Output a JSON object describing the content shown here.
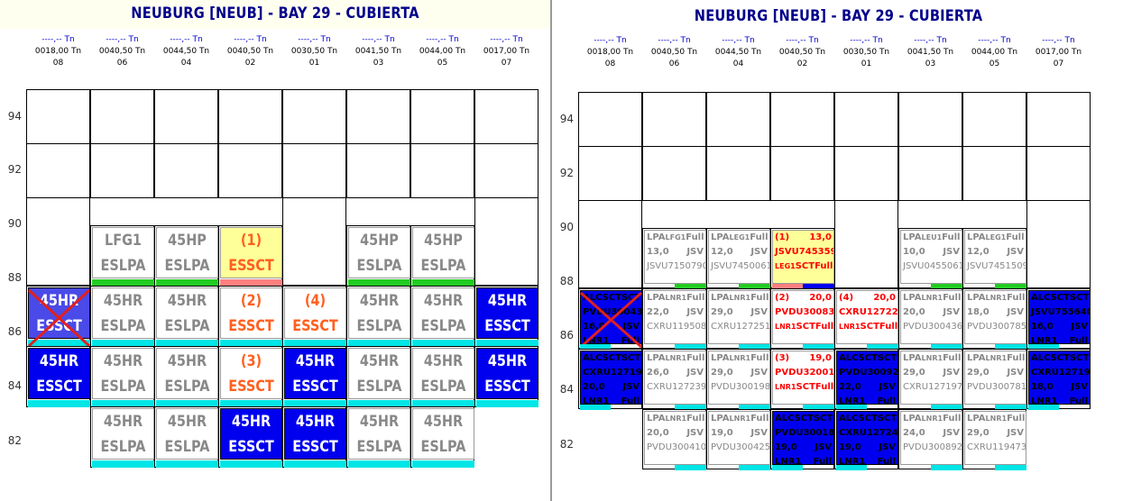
{
  "title": "NEUBURG [NEUB]  - BAY 29 - CUBIERTA",
  "rows": [
    "94",
    "92",
    "90",
    "88",
    "86",
    "84",
    "82"
  ],
  "columns": [
    {
      "id": "08",
      "weight_a": "----,-- Tn",
      "weight_b": "0018,00 Tn"
    },
    {
      "id": "06",
      "weight_a": "----,-- Tn",
      "weight_b": "0040,50 Tn"
    },
    {
      "id": "04",
      "weight_a": "----,-- Tn",
      "weight_b": "0044,50 Tn"
    },
    {
      "id": "02",
      "weight_a": "----,-- Tn",
      "weight_b": "0040,50 Tn"
    },
    {
      "id": "01",
      "weight_a": "----,-- Tn",
      "weight_b": "0030,50 Tn"
    },
    {
      "id": "03",
      "weight_a": "----,-- Tn",
      "weight_b": "0041,50 Tn"
    },
    {
      "id": "05",
      "weight_a": "----,-- Tn",
      "weight_b": "0044,00 Tn"
    },
    {
      "id": "07",
      "weight_a": "----,-- Tn",
      "weight_b": "0017,00 Tn"
    }
  ],
  "left": {
    "col06_r90": [
      "LFG1",
      "ESLPA"
    ],
    "col04_r90": [
      "45HP",
      "ESLPA"
    ],
    "col02_r90": [
      "(1)",
      "ESSCT"
    ],
    "col03_r90": [
      "45HP",
      "ESLPA"
    ],
    "col05_r90": [
      "45HP",
      "ESLPA"
    ],
    "col08_r88": [
      "45HR",
      "ESSCT"
    ],
    "col06_r88": [
      "45HR",
      "ESLPA"
    ],
    "col04_r88": [
      "45HR",
      "ESLPA"
    ],
    "col02_r88": [
      "(2)",
      "ESSCT"
    ],
    "col01_r88": [
      "(4)",
      "ESSCT"
    ],
    "col03_r88": [
      "45HR",
      "ESLPA"
    ],
    "col05_r88": [
      "45HR",
      "ESLPA"
    ],
    "col07_r88": [
      "45HR",
      "ESSCT"
    ],
    "col08_r86": [
      "45HR",
      "ESSCT"
    ],
    "col06_r86": [
      "45HR",
      "ESLPA"
    ],
    "col04_r86": [
      "45HR",
      "ESLPA"
    ],
    "col02_r86": [
      "(3)",
      "ESSCT"
    ],
    "col01_r86": [
      "45HR",
      "ESSCT"
    ],
    "col03_r86": [
      "45HR",
      "ESLPA"
    ],
    "col05_r86": [
      "45HR",
      "ESLPA"
    ],
    "col07_r86": [
      "45HR",
      "ESSCT"
    ],
    "col06_r84": [
      "45HR",
      "ESLPA"
    ],
    "col04_r84": [
      "45HR",
      "ESLPA"
    ],
    "col02_r84": [
      "45HR",
      "ESSCT"
    ],
    "col01_r84": [
      "45HR",
      "ESSCT"
    ],
    "col03_r84": [
      "45HR",
      "ESLPA"
    ],
    "col05_r84": [
      "45HR",
      "ESLPA"
    ]
  },
  "right": {
    "c06_90": [
      "LPA",
      "LFG1",
      "Full",
      "13,0",
      "JSV",
      "JSVU7150790"
    ],
    "c04_90": [
      "LPA",
      "LEG1",
      "Full",
      "12,0",
      "JSV",
      "JSVU7450061"
    ],
    "c02_90": [
      "(1)",
      "13,0",
      "JSVU7453590",
      "LEG1",
      "SCT",
      "Full"
    ],
    "c03_90": [
      "LPA",
      "LEU1",
      "Full",
      "10,0",
      "JSV",
      "JSVU0455061"
    ],
    "c05_90": [
      "LPA",
      "LEG1",
      "Full",
      "12,0",
      "JSV",
      "JSVU7451509"
    ],
    "c08_88": [
      "ALC",
      "SCT",
      "SCT",
      "PVDU3004308",
      "16,0",
      "JSV",
      "LNR1",
      "Full"
    ],
    "c06_88": [
      "LPA",
      "LNR1",
      "Full",
      "22,0",
      "JSV",
      "CXRU1195089"
    ],
    "c04_88": [
      "LPA",
      "LNR1",
      "Full",
      "29,0",
      "JSV",
      "CXRU1272518"
    ],
    "c02_88": [
      "(2)",
      "20,0",
      "PVDU3008350",
      "LNR1",
      "SCT",
      "Full"
    ],
    "c01_88": [
      "(4)",
      "20,0",
      "CXRU1272293",
      "LNR1",
      "SCT",
      "Full"
    ],
    "c03_88": [
      "LPA",
      "LNR1",
      "Full",
      "20,0",
      "JSV",
      "PVDU3004360"
    ],
    "c05_88": [
      "LPA",
      "LNR1",
      "Full",
      "18,0",
      "JSV",
      "PVDU3007858"
    ],
    "c07_88": [
      "ALC",
      "SCT",
      "SCT",
      "JSVU7556407",
      "16,0",
      "JSV",
      "LNR1",
      "Full"
    ],
    "c08_86": [
      "ALC",
      "SCT",
      "SCT",
      "CXRU1271954",
      "20,0",
      "JSV",
      "LNR1",
      "Full"
    ],
    "c06_86": [
      "LPA",
      "LNR1",
      "Full",
      "26,0",
      "JSV",
      "CXRU1272396"
    ],
    "c04_86": [
      "LPA",
      "LNR1",
      "Full",
      "29,0",
      "JSV",
      "PVDU3001989"
    ],
    "c02_86": [
      "(3)",
      "19,0",
      "PVDU3200147",
      "LNR1",
      "SCT",
      "Full"
    ],
    "c01_86": [
      "ALC",
      "SCT",
      "SCT",
      "PVDU3009296",
      "22,0",
      "JSV",
      "LNR1",
      "Full"
    ],
    "c03_86": [
      "LPA",
      "LNR1",
      "Full",
      "29,0",
      "JSV",
      "CXRU1271975"
    ],
    "c05_86": [
      "LPA",
      "LNR1",
      "Full",
      "29,0",
      "JSV",
      "PVDU3007816"
    ],
    "c07_86": [
      "ALC",
      "SCT",
      "SCT",
      "CXRU1271969",
      "18,0",
      "JSV",
      "LNR1",
      "Full"
    ],
    "c06_84": [
      "LPA",
      "LNR1",
      "Full",
      "20,0",
      "JSV",
      "PVDU3004102"
    ],
    "c04_84": [
      "LPA",
      "LNR1",
      "Full",
      "19,0",
      "JSV",
      "PVDU3004252"
    ],
    "c02_84": [
      "ALC",
      "SCT",
      "SCT",
      "PVDU3001886",
      "19,0",
      "JSV",
      "LNR1",
      "Full"
    ],
    "c01_84": [
      "ALC",
      "SCT",
      "SCT",
      "CXRU1272433",
      "19,0",
      "JSV",
      "LNR1",
      "Full"
    ],
    "c03_84": [
      "LPA",
      "LNR1",
      "Full",
      "24,0",
      "JSV",
      "PVDU3008920"
    ],
    "c05_84": [
      "LPA",
      "LNR1",
      "Full",
      "29,0",
      "JSV",
      "CXRU1194734"
    ]
  }
}
